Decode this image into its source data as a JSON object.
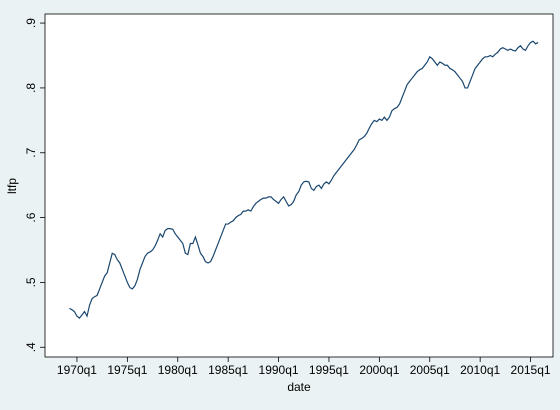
{
  "chart_data": {
    "type": "line",
    "xlabel": "date",
    "ylabel": "ltfp",
    "x": [
      "1969q2",
      "1969q3",
      "1969q4",
      "1970q1",
      "1970q2",
      "1970q3",
      "1970q4",
      "1971q1",
      "1971q2",
      "1971q3",
      "1971q4",
      "1972q1",
      "1972q2",
      "1972q3",
      "1972q4",
      "1973q1",
      "1973q2",
      "1973q3",
      "1973q4",
      "1974q1",
      "1974q2",
      "1974q3",
      "1974q4",
      "1975q1",
      "1975q2",
      "1975q3",
      "1975q4",
      "1976q1",
      "1976q2",
      "1976q3",
      "1976q4",
      "1977q1",
      "1977q2",
      "1977q3",
      "1977q4",
      "1978q1",
      "1978q2",
      "1978q3",
      "1978q4",
      "1979q1",
      "1979q2",
      "1979q3",
      "1979q4",
      "1980q1",
      "1980q2",
      "1980q3",
      "1980q4",
      "1981q1",
      "1981q2",
      "1981q3",
      "1981q4",
      "1982q1",
      "1982q2",
      "1982q3",
      "1982q4",
      "1983q1",
      "1983q2",
      "1983q3",
      "1983q4",
      "1984q1",
      "1984q2",
      "1984q3",
      "1984q4",
      "1985q1",
      "1985q2",
      "1985q3",
      "1985q4",
      "1986q1",
      "1986q2",
      "1986q3",
      "1986q4",
      "1987q1",
      "1987q2",
      "1987q3",
      "1987q4",
      "1988q1",
      "1988q2",
      "1988q3",
      "1988q4",
      "1989q1",
      "1989q2",
      "1989q3",
      "1989q4",
      "1990q1",
      "1990q2",
      "1990q3",
      "1990q4",
      "1991q1",
      "1991q2",
      "1991q3",
      "1991q4",
      "1992q1",
      "1992q2",
      "1992q3",
      "1992q4",
      "1993q1",
      "1993q2",
      "1993q3",
      "1993q4",
      "1994q1",
      "1994q2",
      "1994q3",
      "1994q4",
      "1995q1",
      "1995q2",
      "1995q3",
      "1995q4",
      "1996q1",
      "1996q2",
      "1996q3",
      "1996q4",
      "1997q1",
      "1997q2",
      "1997q3",
      "1997q4",
      "1998q1",
      "1998q2",
      "1998q3",
      "1998q4",
      "1999q1",
      "1999q2",
      "1999q3",
      "1999q4",
      "2000q1",
      "2000q2",
      "2000q3",
      "2000q4",
      "2001q1",
      "2001q2",
      "2001q3",
      "2001q4",
      "2002q1",
      "2002q2",
      "2002q3",
      "2002q4",
      "2003q1",
      "2003q2",
      "2003q3",
      "2003q4",
      "2004q1",
      "2004q2",
      "2004q3",
      "2004q4",
      "2005q1",
      "2005q2",
      "2005q3",
      "2005q4",
      "2006q1",
      "2006q2",
      "2006q3",
      "2006q4",
      "2007q1",
      "2007q2",
      "2007q3",
      "2007q4",
      "2008q1",
      "2008q2",
      "2008q3",
      "2008q4",
      "2009q1",
      "2009q2",
      "2009q3",
      "2009q4",
      "2010q1",
      "2010q2",
      "2010q3",
      "2010q4",
      "2011q1",
      "2011q2",
      "2011q3",
      "2011q4",
      "2012q1",
      "2012q2",
      "2012q3",
      "2012q4",
      "2013q1",
      "2013q2",
      "2013q3",
      "2013q4",
      "2014q1",
      "2014q2",
      "2014q3",
      "2014q4",
      "2015q1",
      "2015q2",
      "2015q3",
      "2015q4"
    ],
    "series": [
      {
        "color": "#1a476f",
        "values": [
          0.46,
          0.458,
          0.455,
          0.448,
          0.445,
          0.45,
          0.455,
          0.448,
          0.465,
          0.475,
          0.478,
          0.48,
          0.49,
          0.5,
          0.51,
          0.515,
          0.53,
          0.545,
          0.543,
          0.535,
          0.53,
          0.52,
          0.51,
          0.5,
          0.492,
          0.49,
          0.495,
          0.505,
          0.52,
          0.53,
          0.54,
          0.545,
          0.547,
          0.55,
          0.556,
          0.565,
          0.575,
          0.57,
          0.58,
          0.583,
          0.583,
          0.582,
          0.575,
          0.57,
          0.565,
          0.56,
          0.545,
          0.543,
          0.56,
          0.56,
          0.57,
          0.558,
          0.545,
          0.54,
          0.532,
          0.53,
          0.532,
          0.54,
          0.55,
          0.56,
          0.57,
          0.58,
          0.59,
          0.59,
          0.593,
          0.595,
          0.6,
          0.603,
          0.605,
          0.61,
          0.61,
          0.612,
          0.61,
          0.617,
          0.622,
          0.625,
          0.628,
          0.63,
          0.63,
          0.632,
          0.632,
          0.628,
          0.625,
          0.622,
          0.628,
          0.632,
          0.625,
          0.618,
          0.62,
          0.625,
          0.635,
          0.64,
          0.65,
          0.655,
          0.656,
          0.655,
          0.645,
          0.642,
          0.648,
          0.65,
          0.645,
          0.652,
          0.655,
          0.652,
          0.658,
          0.665,
          0.67,
          0.675,
          0.68,
          0.685,
          0.69,
          0.695,
          0.7,
          0.705,
          0.712,
          0.72,
          0.722,
          0.725,
          0.73,
          0.738,
          0.745,
          0.75,
          0.748,
          0.752,
          0.75,
          0.755,
          0.75,
          0.755,
          0.765,
          0.768,
          0.77,
          0.775,
          0.785,
          0.795,
          0.805,
          0.81,
          0.815,
          0.82,
          0.825,
          0.828,
          0.83,
          0.835,
          0.84,
          0.848,
          0.845,
          0.84,
          0.835,
          0.84,
          0.838,
          0.835,
          0.835,
          0.83,
          0.828,
          0.825,
          0.82,
          0.815,
          0.81,
          0.8,
          0.8,
          0.81,
          0.82,
          0.83,
          0.835,
          0.84,
          0.845,
          0.848,
          0.848,
          0.85,
          0.848,
          0.852,
          0.855,
          0.86,
          0.862,
          0.86,
          0.858,
          0.86,
          0.858,
          0.857,
          0.862,
          0.865,
          0.86,
          0.858,
          0.865,
          0.87,
          0.872,
          0.868,
          0.87
        ]
      }
    ],
    "xticks": [
      "1970q1",
      "1975q1",
      "1980q1",
      "1985q1",
      "1990q1",
      "1995q1",
      "2000q1",
      "2005q1",
      "2010q1",
      "2015q1"
    ],
    "ylim": [
      0.385,
      0.914
    ],
    "yticks": [
      {
        "value": 0.4,
        "label": ".4"
      },
      {
        "value": 0.5,
        "label": ".5"
      },
      {
        "value": 0.6,
        "label": ".6"
      },
      {
        "value": 0.7,
        "label": ".7"
      },
      {
        "value": 0.8,
        "label": ".8"
      },
      {
        "value": 0.9,
        "label": ".9"
      }
    ],
    "grid": false
  }
}
